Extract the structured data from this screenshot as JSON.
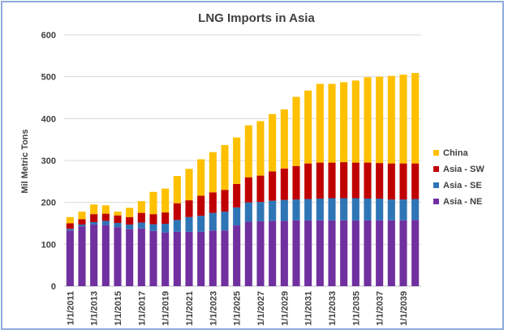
{
  "chart_data": {
    "type": "bar",
    "stacked": true,
    "title": "LNG Imports in Asia",
    "xlabel": "",
    "ylabel": "Mil Metric Tons",
    "ylim": [
      0,
      600
    ],
    "yticks": [
      0,
      100,
      200,
      300,
      400,
      500,
      600
    ],
    "grid": true,
    "legend_position": "right",
    "categories": [
      "1/1/2011",
      "1/1/2012",
      "1/1/2013",
      "1/1/2014",
      "1/1/2015",
      "1/1/2016",
      "1/1/2017",
      "1/1/2018",
      "1/1/2019",
      "1/1/2020",
      "1/1/2021",
      "1/1/2022",
      "1/1/2023",
      "1/1/2024",
      "1/1/2025",
      "1/1/2026",
      "1/1/2027",
      "1/1/2028",
      "1/1/2029",
      "1/1/2030",
      "1/1/2031",
      "1/1/2032",
      "1/1/2033",
      "1/1/2034",
      "1/1/2035",
      "1/1/2036",
      "1/1/2037",
      "1/1/2038",
      "1/1/2039",
      "1/1/2040"
    ],
    "tick_labels": [
      "1/1/2011",
      "1/1/2013",
      "1/1/2015",
      "1/1/2017",
      "1/1/2019",
      "1/1/2021",
      "1/1/2023",
      "1/1/2025",
      "1/1/2027",
      "1/1/2029",
      "1/1/2031",
      "1/1/2033",
      "1/1/2035",
      "1/1/2037",
      "1/1/2039"
    ],
    "series": [
      {
        "name": "Asia - NE",
        "color": "#7030a0",
        "values": [
          133,
          143,
          147,
          146,
          141,
          136,
          138,
          132,
          128,
          130,
          130,
          130,
          133,
          133,
          145,
          154,
          155,
          156,
          156,
          157,
          157,
          157,
          157,
          157,
          157,
          157,
          157,
          157,
          157,
          158
        ]
      },
      {
        "name": "Asia - SE",
        "color": "#2e75b6",
        "values": [
          4,
          4,
          6,
          10,
          10,
          11,
          14,
          16,
          21,
          28,
          35,
          38,
          42,
          45,
          43,
          46,
          46,
          48,
          50,
          50,
          51,
          52,
          53,
          53,
          53,
          52,
          52,
          50,
          50,
          50
        ]
      },
      {
        "name": "Asia - SW",
        "color": "#c00000",
        "values": [
          13,
          13,
          19,
          17,
          18,
          18,
          23,
          24,
          27,
          40,
          40,
          48,
          49,
          52,
          56,
          60,
          63,
          70,
          75,
          80,
          85,
          86,
          85,
          86,
          85,
          86,
          85,
          86,
          86,
          85
        ]
      },
      {
        "name": "China",
        "color": "#ffc000",
        "values": [
          15,
          18,
          23,
          20,
          9,
          22,
          28,
          53,
          57,
          65,
          75,
          87,
          96,
          107,
          111,
          124,
          130,
          137,
          141,
          165,
          174,
          188,
          188,
          191,
          196,
          204,
          206,
          209,
          212,
          216
        ]
      }
    ],
    "legend_order": [
      "China",
      "Asia - SW",
      "Asia - SE",
      "Asia - NE"
    ]
  }
}
